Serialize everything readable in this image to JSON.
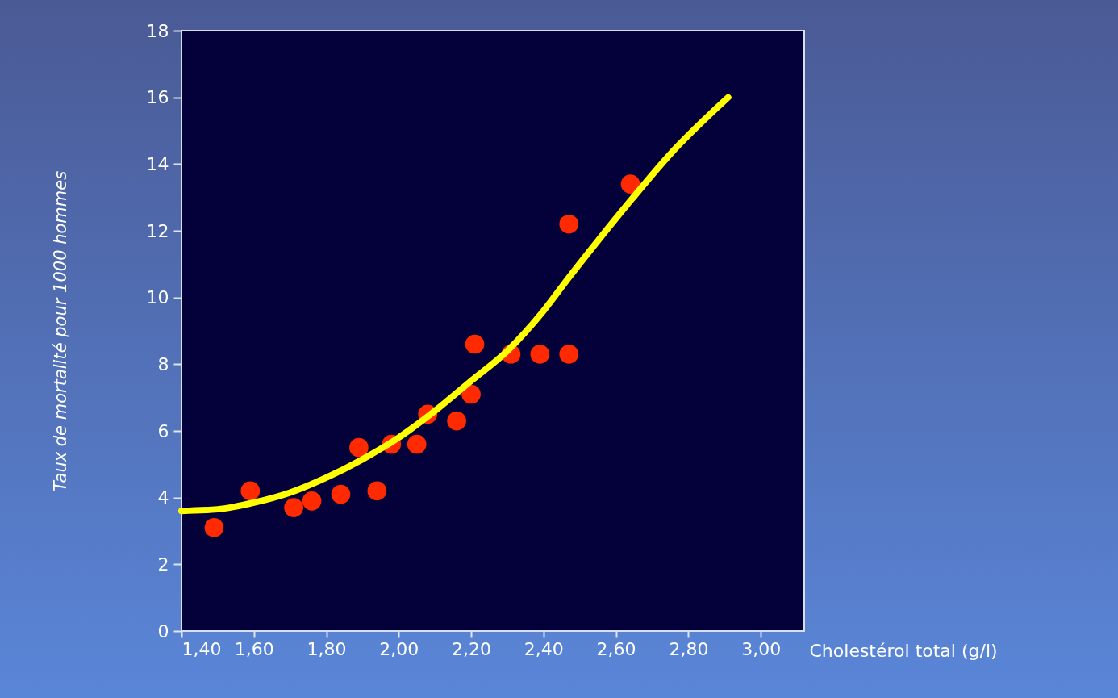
{
  "chart_data": {
    "type": "scatter",
    "xlabel": "Cholestérol total (g/l)",
    "ylabel": "Taux de mortalité pour 1000 hommes",
    "xlim": [
      1.4,
      3.12
    ],
    "ylim": [
      0,
      18
    ],
    "xticks": [
      {
        "value": 1.4,
        "label": "1,40"
      },
      {
        "value": 1.6,
        "label": "1,60"
      },
      {
        "value": 1.8,
        "label": "1,80"
      },
      {
        "value": 2.0,
        "label": "2,00"
      },
      {
        "value": 2.2,
        "label": "2,20"
      },
      {
        "value": 2.4,
        "label": "2,40"
      },
      {
        "value": 2.6,
        "label": "2,60"
      },
      {
        "value": 2.8,
        "label": "2,80"
      },
      {
        "value": 3.0,
        "label": "3,00"
      }
    ],
    "yticks": [
      0,
      2,
      4,
      6,
      8,
      10,
      12,
      14,
      16,
      18
    ],
    "grid": false,
    "marker": "circle",
    "series": [
      {
        "color": "#ff2a00",
        "x": [
          1.49,
          1.59,
          1.71,
          1.76,
          1.84,
          1.89,
          1.94,
          1.98,
          2.05,
          2.08,
          2.16,
          2.2,
          2.21,
          2.31,
          2.39,
          2.47,
          2.47,
          2.64
        ],
        "values": [
          3.1,
          4.2,
          3.7,
          3.9,
          4.1,
          5.5,
          4.2,
          5.6,
          5.6,
          6.5,
          6.3,
          7.1,
          8.6,
          8.3,
          8.3,
          8.3,
          12.2,
          13.4
        ]
      },
      {
        "type": "line",
        "color": "#ffff00",
        "line_style": "solid",
        "marker": "none",
        "x": [
          1.4,
          1.5,
          1.6,
          1.7,
          1.8,
          1.9,
          2.0,
          2.1,
          2.2,
          2.3,
          2.4,
          2.47,
          2.55,
          2.64,
          2.75,
          2.91
        ],
        "values": [
          3.6,
          3.65,
          3.85,
          4.15,
          4.6,
          5.15,
          5.8,
          6.6,
          7.5,
          8.4,
          9.6,
          10.6,
          11.7,
          12.9,
          14.3,
          16.0
        ]
      }
    ]
  }
}
